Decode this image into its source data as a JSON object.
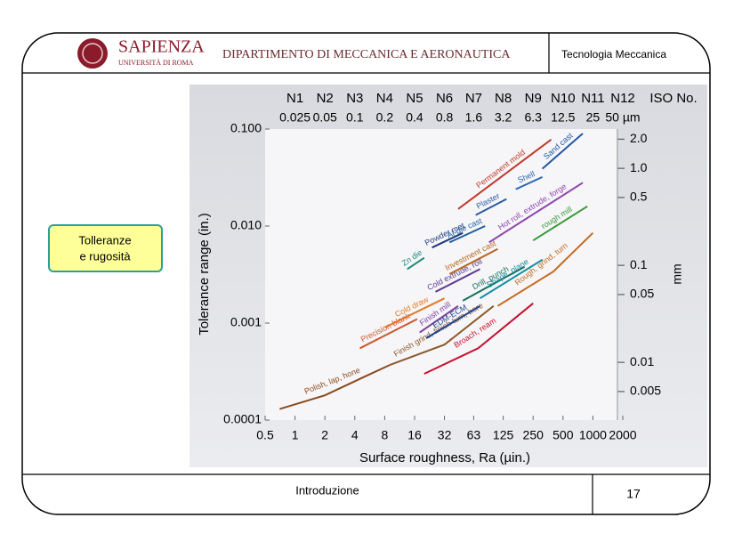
{
  "header": {
    "university": "SAPIENZA",
    "university_sub": "UNIVERSITÀ DI ROMA",
    "department": "DIPARTIMENTO DI MECCANICA E AERONAUTICA",
    "course": "Tecnologia Meccanica"
  },
  "sidebar_label": [
    "Tolleranze",
    "e rugosità"
  ],
  "footer": {
    "section": "Introduzione",
    "page": 17
  },
  "chart_data": {
    "type": "line",
    "x_label": "Surface roughness, Ra (µin.)",
    "y_label": "Tolerance range (in.)",
    "y2_label": "mm",
    "log_x": true,
    "log_y": true,
    "xlim": [
      0.5,
      2000
    ],
    "ylim": [
      0.0001,
      0.1
    ],
    "y2lim": [
      0.00254,
      2.54
    ],
    "xticks": [
      0.5,
      1,
      2,
      4,
      8,
      16,
      32,
      63,
      125,
      250,
      500,
      1000,
      2000
    ],
    "yticks": [
      {
        "value": 0.0001,
        "label": "0.0001"
      },
      0.001,
      {
        "value": 0.01,
        "label": "0.010"
      },
      {
        "value": 0.1,
        "label": "0.100"
      }
    ],
    "y2ticks": [
      0.005,
      0.01,
      0.05,
      0.1,
      0.5,
      {
        "value": 1,
        "label": "1.0"
      },
      {
        "value": 2,
        "label": "2.0"
      }
    ],
    "iso_title": "ISO No.",
    "iso_ticks": [
      {
        "value": 1,
        "label": "N1"
      },
      {
        "value": 2,
        "label": "N2"
      },
      {
        "value": 4,
        "label": "N3"
      },
      {
        "value": 8,
        "label": "N4"
      },
      {
        "value": 16,
        "label": "N5"
      },
      {
        "value": 32,
        "label": "N6"
      },
      {
        "value": 63,
        "label": "N7"
      },
      {
        "value": 125,
        "label": "N8"
      },
      {
        "value": 250,
        "label": "N9"
      },
      {
        "value": 500,
        "label": "N10"
      },
      {
        "value": 1000,
        "label": "N11"
      },
      {
        "value": 2000,
        "label": "N12"
      }
    ],
    "um_ticks": [
      {
        "value": 1,
        "label": "0.025"
      },
      {
        "value": 2,
        "label": "0.05"
      },
      {
        "value": 4,
        "label": "0.1"
      },
      {
        "value": 8,
        "label": "0.2"
      },
      {
        "value": 16,
        "label": "0.4"
      },
      {
        "value": 32,
        "label": "0.8"
      },
      {
        "value": 63,
        "label": "1.6"
      },
      {
        "value": 125,
        "label": "3.2"
      },
      {
        "value": 250,
        "label": "6.3"
      },
      {
        "value": 500,
        "label": "12.5"
      },
      {
        "value": 1000,
        "label": "25"
      },
      {
        "value": 2000,
        "label": "50 µm"
      }
    ],
    "series": [
      {
        "name": "Polish, lap, hone",
        "color": "#8b4a1c",
        "x": [
          0.7,
          2,
          5,
          9
        ],
        "y": [
          0.00013,
          0.00018,
          0.00028,
          0.00037
        ]
      },
      {
        "name": "Finish grind, finish turn, bore",
        "color": "#8b5a2b",
        "x": [
          9,
          32,
          100
        ],
        "y": [
          0.00037,
          0.0006,
          0.0015
        ]
      },
      {
        "name": "Broach, ream",
        "color": "#c8102e",
        "x": [
          20,
          70,
          250
        ],
        "y": [
          0.0003,
          0.00055,
          0.0016
        ]
      },
      {
        "name": "Rough, grind, turn",
        "color": "#c46a1f",
        "x": [
          110,
          400,
          1000
        ],
        "y": [
          0.0015,
          0.0034,
          0.0085
        ]
      },
      {
        "name": "Precision blank",
        "color": "#d2542a",
        "x": [
          4.5,
          17
        ],
        "y": [
          0.00055,
          0.0011
        ]
      },
      {
        "name": "Cold draw",
        "color": "#e87722",
        "x": [
          8,
          32
        ],
        "y": [
          0.0009,
          0.0018
        ]
      },
      {
        "name": "Finish mill",
        "color": "#7b3f9e",
        "x": [
          18,
          44
        ],
        "y": [
          0.0008,
          0.0015
        ]
      },
      {
        "name": "EDM-ECM",
        "color": "#1f3f8f",
        "x": [
          21,
          73
        ],
        "y": [
          0.0007,
          0.0015
        ]
      },
      {
        "name": "Cold extrude, roll",
        "color": "#5b3a8e",
        "x": [
          26,
          73
        ],
        "y": [
          0.0021,
          0.0036
        ]
      },
      {
        "name": "Investment cast",
        "color": "#b5651d",
        "x": [
          36,
          110
        ],
        "y": [
          0.0032,
          0.0058
        ]
      },
      {
        "name": "Drill, punch",
        "color": "#1a6f5a",
        "x": [
          49,
          205
        ],
        "y": [
          0.0017,
          0.0038
        ]
      },
      {
        "name": "Shape, plane",
        "color": "#0f8aa0",
        "x": [
          73,
          310
        ],
        "y": [
          0.0018,
          0.0045
        ]
      },
      {
        "name": "rough mill",
        "color": "#3a9a3a",
        "x": [
          250,
          880
        ],
        "y": [
          0.0071,
          0.016
        ]
      },
      {
        "name": "Hot roll, extrude, forge",
        "color": "#8e44ad",
        "x": [
          90,
          790
        ],
        "y": [
          0.0068,
          0.028
        ]
      },
      {
        "name": "Zn die",
        "color": "#1a8a7a",
        "x": [
          13.5,
          20
        ],
        "y": [
          0.0036,
          0.0047
        ]
      },
      {
        "name": "Powder met",
        "color": "#1f3a7a",
        "x": [
          24,
          49
        ],
        "y": [
          0.006,
          0.0085
        ]
      },
      {
        "name": "Al-die cast",
        "color": "#2060a0",
        "x": [
          36,
          82
        ],
        "y": [
          0.0068,
          0.01
        ]
      },
      {
        "name": "Plaster",
        "color": "#2c5aa0",
        "x": [
          66,
          135
        ],
        "y": [
          0.013,
          0.019
        ]
      },
      {
        "name": "Shell",
        "color": "#2a66b0",
        "x": [
          167,
          310
        ],
        "y": [
          0.024,
          0.032
        ]
      },
      {
        "name": "Sand cast",
        "color": "#2255aa",
        "x": [
          310,
          790
        ],
        "y": [
          0.039,
          0.09
        ]
      },
      {
        "name": "Permanent mold",
        "color": "#c0392b",
        "x": [
          44,
          380
        ],
        "y": [
          0.015,
          0.078
        ]
      }
    ]
  }
}
